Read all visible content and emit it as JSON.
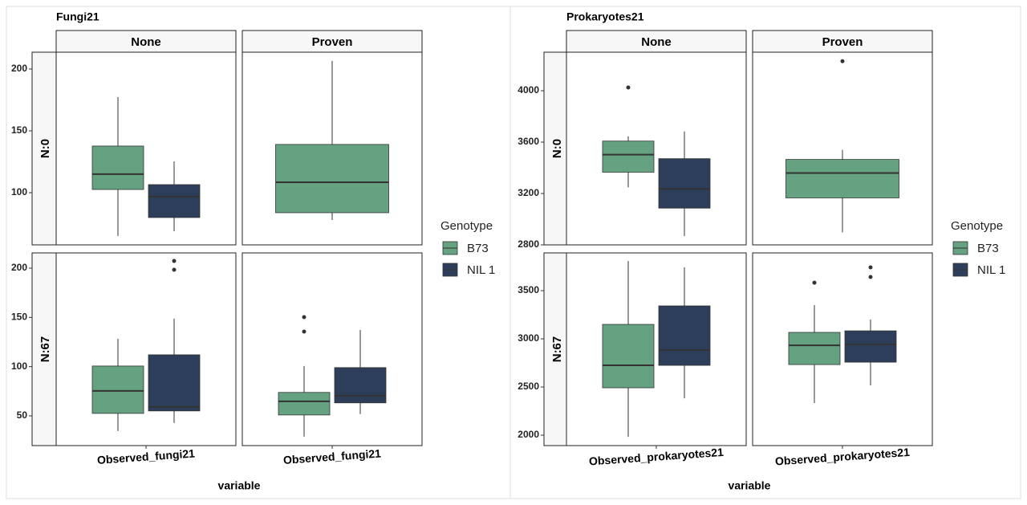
{
  "chart_data": [
    {
      "type": "box",
      "title": "Fungi21",
      "x_label": "variable",
      "category": "Observed_fungi21",
      "legend_title": "Genotype",
      "series": [
        {
          "name": "B73",
          "color": "#64a281"
        },
        {
          "name": "NIL 1",
          "color": "#2c3e59"
        }
      ],
      "columns": [
        "None",
        "Proven"
      ],
      "rows": [
        {
          "label": "N:0",
          "ylim": [
            57.8,
            213.6
          ],
          "yticks": [
            100,
            150,
            200
          ],
          "panels": [
            {
              "boxes": [
                {
                  "min": 65,
                  "q1": 102.6,
                  "median": 115,
                  "q3": 137.7,
                  "max": 177.3,
                  "outliers": []
                },
                {
                  "min": 68.8,
                  "q1": 79.9,
                  "median": 96.8,
                  "q3": 106.5,
                  "max": 125.3,
                  "outliers": []
                }
              ]
            },
            {
              "boxes": [
                {
                  "min": 77.9,
                  "q1": 83.8,
                  "median": 108.4,
                  "q3": 139,
                  "max": 206.5,
                  "outliers": []
                },
                null
              ]
            }
          ]
        },
        {
          "label": "N:67",
          "ylim": [
            19.8,
            215.5
          ],
          "yticks": [
            50,
            100,
            150,
            200
          ],
          "panels": [
            {
              "boxes": [
                {
                  "min": 34.6,
                  "q1": 52.5,
                  "median": 75.3,
                  "q3": 100.6,
                  "max": 128.3,
                  "outliers": []
                },
                {
                  "min": 42.8,
                  "q1": 55,
                  "median": 59,
                  "q3": 112,
                  "max": 148.7,
                  "outliers": [
                    207.3,
                    198.4
                  ]
                }
              ]
            },
            {
              "boxes": [
                {
                  "min": 28.9,
                  "q1": 50.9,
                  "median": 64.8,
                  "q3": 73.8,
                  "max": 100.6,
                  "outliers": [
                    150.3,
                    135.6
                  ]
                },
                {
                  "min": 51.8,
                  "q1": 63.2,
                  "median": 70.5,
                  "q3": 99,
                  "max": 137.2,
                  "outliers": []
                }
              ]
            }
          ]
        }
      ]
    },
    {
      "type": "box",
      "title": "Prokaryotes21",
      "x_label": "variable",
      "category": "Observed_prokaryotes21",
      "legend_title": "Genotype",
      "series": [
        {
          "name": "B73",
          "color": "#64a281"
        },
        {
          "name": "NIL 1",
          "color": "#2c3e59"
        }
      ],
      "columns": [
        "None",
        "Proven"
      ],
      "rows": [
        {
          "label": "N:0",
          "ylim": [
            2800,
            4300
          ],
          "yticks": [
            2800,
            3200,
            3600,
            4000
          ],
          "panels": [
            {
              "boxes": [
                {
                  "min": 3248,
                  "q1": 3366,
                  "median": 3502,
                  "q3": 3608,
                  "max": 3645,
                  "outliers": [
                    4025
                  ]
                },
                {
                  "min": 2869,
                  "q1": 3086,
                  "median": 3235,
                  "q3": 3471,
                  "max": 3683,
                  "outliers": []
                }
              ]
            },
            {
              "boxes": [
                {
                  "min": 2898,
                  "q1": 3166,
                  "median": 3359,
                  "q3": 3465,
                  "max": 3539,
                  "outliers": [
                    4230
                  ]
                },
                null
              ]
            }
          ]
        },
        {
          "label": "N:67",
          "ylim": [
            1892,
            3892
          ],
          "yticks": [
            2000,
            2500,
            3000,
            3500
          ],
          "panels": [
            {
              "boxes": [
                {
                  "min": 1983,
                  "q1": 2492,
                  "median": 2725,
                  "q3": 3150,
                  "max": 3808,
                  "outliers": []
                },
                {
                  "min": 2383,
                  "q1": 2725,
                  "median": 2883,
                  "q3": 3342,
                  "max": 3742,
                  "outliers": []
                }
              ]
            },
            {
              "boxes": [
                {
                  "min": 2333,
                  "q1": 2733,
                  "median": 2933,
                  "q3": 3067,
                  "max": 3350,
                  "outliers": [
                    3583
                  ]
                },
                {
                  "min": 2517,
                  "q1": 2758,
                  "median": 2942,
                  "q3": 3083,
                  "max": 3200,
                  "outliers": [
                    3742,
                    3642
                  ]
                }
              ]
            }
          ]
        }
      ]
    }
  ]
}
